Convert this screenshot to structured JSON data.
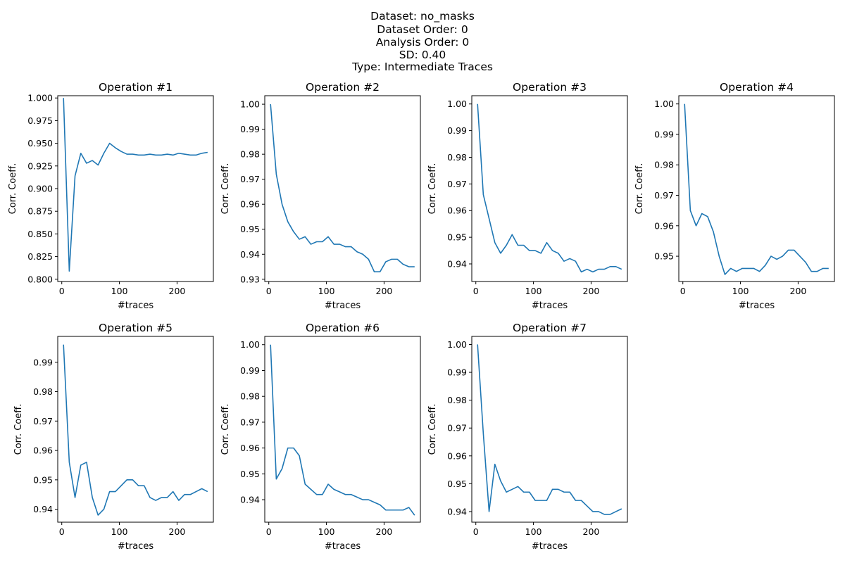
{
  "figure": {
    "suptitle_lines": [
      "Dataset: no_masks",
      "Dataset Order: 0",
      "Analysis Order: 0",
      "SD: 0.40",
      "Type: Intermediate Traces"
    ],
    "line_color": "#1f77b4"
  },
  "chart_data": [
    {
      "type": "line",
      "title": "Operation #1",
      "xlabel": "#traces",
      "ylabel": "Corr. Coeff.",
      "xlim": [
        -7,
        263
      ],
      "ylim": [
        0.7975,
        1.0025
      ],
      "xticks": [
        0,
        100,
        200
      ],
      "yticks": [
        0.8,
        0.825,
        0.85,
        0.875,
        0.9,
        0.925,
        0.95,
        0.975,
        1.0
      ],
      "ytick_decimals": 3,
      "x": [
        3,
        13,
        23,
        33,
        43,
        53,
        63,
        73,
        83,
        93,
        103,
        113,
        123,
        133,
        143,
        153,
        163,
        173,
        183,
        193,
        203,
        213,
        223,
        233,
        243,
        253
      ],
      "values": [
        1.0,
        0.809,
        0.914,
        0.939,
        0.928,
        0.931,
        0.926,
        0.939,
        0.95,
        0.945,
        0.941,
        0.938,
        0.938,
        0.937,
        0.937,
        0.938,
        0.937,
        0.937,
        0.938,
        0.937,
        0.939,
        0.938,
        0.937,
        0.937,
        0.939,
        0.94
      ]
    },
    {
      "type": "line",
      "title": "Operation #2",
      "xlabel": "#traces",
      "ylabel": "Corr. Coeff.",
      "xlim": [
        -7,
        263
      ],
      "ylim": [
        0.9291,
        1.0034
      ],
      "xticks": [
        0,
        100,
        200
      ],
      "yticks": [
        0.93,
        0.94,
        0.95,
        0.96,
        0.97,
        0.98,
        0.99,
        1.0
      ],
      "ytick_decimals": 2,
      "x": [
        3,
        13,
        23,
        33,
        43,
        53,
        63,
        73,
        83,
        93,
        103,
        113,
        123,
        133,
        143,
        153,
        163,
        173,
        183,
        193,
        203,
        213,
        223,
        233,
        243,
        253
      ],
      "values": [
        1.0,
        0.972,
        0.96,
        0.953,
        0.949,
        0.946,
        0.947,
        0.944,
        0.945,
        0.945,
        0.947,
        0.944,
        0.944,
        0.943,
        0.943,
        0.941,
        0.94,
        0.938,
        0.933,
        0.933,
        0.937,
        0.938,
        0.938,
        0.936,
        0.935,
        0.935
      ]
    },
    {
      "type": "line",
      "title": "Operation #3",
      "xlabel": "#traces",
      "ylabel": "Corr. Coeff.",
      "xlim": [
        -7,
        263
      ],
      "ylim": [
        0.9334,
        1.0031
      ],
      "xticks": [
        0,
        100,
        200
      ],
      "yticks": [
        0.94,
        0.95,
        0.96,
        0.97,
        0.98,
        0.99,
        1.0
      ],
      "ytick_decimals": 2,
      "x": [
        3,
        13,
        23,
        33,
        43,
        53,
        63,
        73,
        83,
        93,
        103,
        113,
        123,
        133,
        143,
        153,
        163,
        173,
        183,
        193,
        203,
        213,
        223,
        233,
        243,
        253
      ],
      "values": [
        1.0,
        0.966,
        0.957,
        0.948,
        0.944,
        0.947,
        0.951,
        0.947,
        0.947,
        0.945,
        0.945,
        0.944,
        0.948,
        0.945,
        0.944,
        0.941,
        0.942,
        0.941,
        0.937,
        0.938,
        0.937,
        0.938,
        0.938,
        0.939,
        0.939,
        0.938
      ]
    },
    {
      "type": "line",
      "title": "Operation #4",
      "xlabel": "#traces",
      "ylabel": "Corr. Coeff.",
      "xlim": [
        -7,
        263
      ],
      "ylim": [
        0.9417,
        1.0027
      ],
      "xticks": [
        0,
        100,
        200
      ],
      "yticks": [
        0.95,
        0.96,
        0.97,
        0.98,
        0.99,
        1.0
      ],
      "ytick_decimals": 2,
      "x": [
        3,
        13,
        23,
        33,
        43,
        53,
        63,
        73,
        83,
        93,
        103,
        113,
        123,
        133,
        143,
        153,
        163,
        173,
        183,
        193,
        203,
        213,
        223,
        233,
        243,
        253
      ],
      "values": [
        1.0,
        0.965,
        0.96,
        0.964,
        0.963,
        0.958,
        0.95,
        0.944,
        0.946,
        0.945,
        0.946,
        0.946,
        0.946,
        0.945,
        0.947,
        0.95,
        0.949,
        0.95,
        0.952,
        0.952,
        0.95,
        0.948,
        0.945,
        0.945,
        0.946,
        0.946
      ]
    },
    {
      "type": "line",
      "title": "Operation #5",
      "xlabel": "#traces",
      "ylabel": "Corr. Coeff.",
      "xlim": [
        -7,
        263
      ],
      "ylim": [
        0.9356,
        0.9988
      ],
      "xticks": [
        0,
        100,
        200
      ],
      "yticks": [
        0.94,
        0.95,
        0.96,
        0.97,
        0.98,
        0.99
      ],
      "ytick_decimals": 2,
      "x": [
        3,
        13,
        23,
        33,
        43,
        53,
        63,
        73,
        83,
        93,
        103,
        113,
        123,
        133,
        143,
        153,
        163,
        173,
        183,
        193,
        203,
        213,
        223,
        233,
        243,
        253
      ],
      "values": [
        0.996,
        0.956,
        0.944,
        0.955,
        0.956,
        0.944,
        0.938,
        0.94,
        0.946,
        0.946,
        0.948,
        0.95,
        0.95,
        0.948,
        0.948,
        0.944,
        0.943,
        0.944,
        0.944,
        0.946,
        0.943,
        0.945,
        0.945,
        0.946,
        0.947,
        0.946
      ]
    },
    {
      "type": "line",
      "title": "Operation #6",
      "xlabel": "#traces",
      "ylabel": "Corr. Coeff.",
      "xlim": [
        -7,
        263
      ],
      "ylim": [
        0.9313,
        1.0032
      ],
      "xticks": [
        0,
        100,
        200
      ],
      "yticks": [
        0.94,
        0.95,
        0.96,
        0.97,
        0.98,
        0.99,
        1.0
      ],
      "ytick_decimals": 2,
      "x": [
        3,
        13,
        23,
        33,
        43,
        53,
        63,
        73,
        83,
        93,
        103,
        113,
        123,
        133,
        143,
        153,
        163,
        173,
        183,
        193,
        203,
        213,
        223,
        233,
        243,
        253
      ],
      "values": [
        1.0,
        0.948,
        0.952,
        0.96,
        0.96,
        0.957,
        0.946,
        0.944,
        0.942,
        0.942,
        0.946,
        0.944,
        0.943,
        0.942,
        0.942,
        0.941,
        0.94,
        0.94,
        0.939,
        0.938,
        0.936,
        0.936,
        0.936,
        0.936,
        0.937,
        0.934
      ]
    },
    {
      "type": "line",
      "title": "Operation #7",
      "xlabel": "#traces",
      "ylabel": "Corr. Coeff.",
      "xlim": [
        -7,
        263
      ],
      "ylim": [
        0.9362,
        1.0029
      ],
      "xticks": [
        0,
        100,
        200
      ],
      "yticks": [
        0.94,
        0.95,
        0.96,
        0.97,
        0.98,
        0.99,
        1.0
      ],
      "ytick_decimals": 2,
      "x": [
        3,
        13,
        23,
        33,
        43,
        53,
        63,
        73,
        83,
        93,
        103,
        113,
        123,
        133,
        143,
        153,
        163,
        173,
        183,
        193,
        203,
        213,
        223,
        233,
        243,
        253
      ],
      "values": [
        1.0,
        0.968,
        0.94,
        0.957,
        0.951,
        0.947,
        0.948,
        0.949,
        0.947,
        0.947,
        0.944,
        0.944,
        0.944,
        0.948,
        0.948,
        0.947,
        0.947,
        0.944,
        0.944,
        0.942,
        0.94,
        0.94,
        0.939,
        0.939,
        0.94,
        0.941
      ]
    }
  ]
}
